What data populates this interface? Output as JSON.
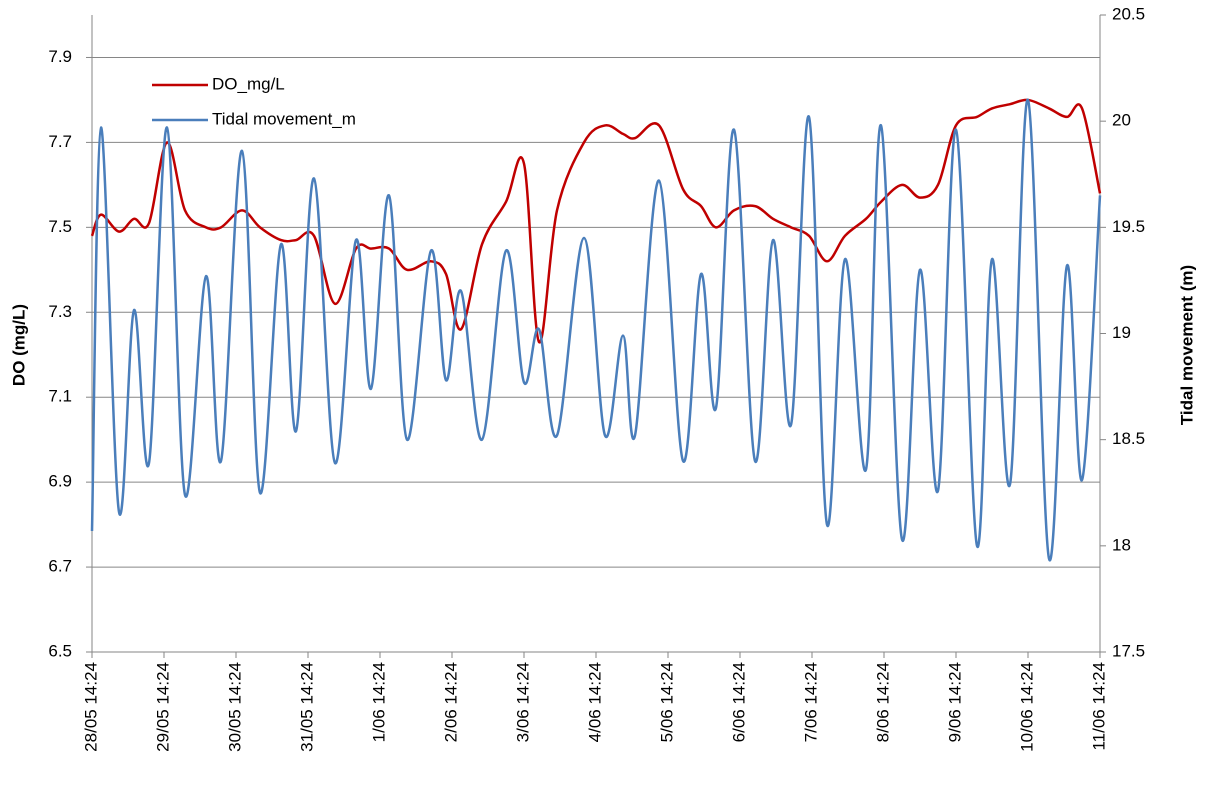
{
  "chart_data": {
    "type": "line",
    "ylabel": "DO (mg/L)",
    "y2label": "Tidal movement (m)",
    "x": [
      "28/05 14:24",
      "28/05 17:24",
      "28/05 23:24",
      "29/05 04:24",
      "29/05 09:24",
      "29/05 15:24",
      "29/05 21:24",
      "30/05 04:24",
      "30/05 09:24",
      "30/05 16:24",
      "30/05 22:24",
      "31/05 05:24",
      "31/05 10:24",
      "31/05 16:24",
      "31/05 23:24",
      "1/06 06:24",
      "1/06 11:24",
      "1/06 17:24",
      "1/06 23:24",
      "2/06 07:24",
      "2/06 12:24",
      "2/06 17:24",
      "3/06 00:24",
      "3/06 08:24",
      "3/06 14:24",
      "3/06 19:24",
      "4/06 01:24",
      "4/06 10:24",
      "4/06 17:24",
      "4/06 23:24",
      "5/06 03:24",
      "5/06 11:24",
      "5/06 19:24",
      "6/06 01:24",
      "6/06 06:24",
      "6/06 12:24",
      "6/06 19:24",
      "7/06 01:24",
      "7/06 07:24",
      "7/06 13:24",
      "7/06 19:24",
      "8/06 01:24",
      "8/06 08:24",
      "8/06 13:24",
      "8/06 20:24",
      "9/06 02:24",
      "9/06 08:24",
      "9/06 14:24",
      "9/06 21:24",
      "10/06 02:24",
      "10/06 08:24",
      "10/06 14:24",
      "10/06 21:24",
      "11/06 03:24",
      "11/06 08:24",
      "11/06 14:24"
    ],
    "series": [
      {
        "name": "DO_mg/L",
        "color": "#c00000",
        "values": [
          7.48,
          7.53,
          7.49,
          7.52,
          7.51,
          7.7,
          7.54,
          7.5,
          7.5,
          7.54,
          7.5,
          7.47,
          7.47,
          7.48,
          7.32,
          7.45,
          7.45,
          7.45,
          7.4,
          7.42,
          7.39,
          7.26,
          7.46,
          7.56,
          7.65,
          7.23,
          7.54,
          7.7,
          7.74,
          7.72,
          7.71,
          7.74,
          7.59,
          7.55,
          7.5,
          7.54,
          7.55,
          7.52,
          7.5,
          7.48,
          7.42,
          7.48,
          7.52,
          7.56,
          7.6,
          7.57,
          7.6,
          7.74,
          7.76,
          7.78,
          7.79,
          7.8,
          7.78,
          7.76,
          7.78,
          7.58
        ]
      },
      {
        "name": "Tidal movement_m",
        "color": "#4a7ebb",
        "axis": "y2",
        "values": [
          18.07,
          19.97,
          18.16,
          19.11,
          18.39,
          19.97,
          18.24,
          19.27,
          18.4,
          19.86,
          18.25,
          19.42,
          18.54,
          19.73,
          18.39,
          19.44,
          18.74,
          19.65,
          18.5,
          19.39,
          18.78,
          19.2,
          18.5,
          19.39,
          18.77,
          19.02,
          18.52,
          19.45,
          18.52,
          18.99,
          18.52,
          19.72,
          18.4,
          19.28,
          18.65,
          19.96,
          18.4,
          19.44,
          18.57,
          20.02,
          18.1,
          19.35,
          18.36,
          19.98,
          18.03,
          19.3,
          18.26,
          19.96,
          18.0,
          19.35,
          18.29,
          20.1,
          17.94,
          19.32,
          18.31,
          19.65
        ]
      }
    ],
    "xticks": [
      "28/05 14:24",
      "29/05 14:24",
      "30/05 14:24",
      "31/05 14:24",
      "1/06 14:24",
      "2/06 14:24",
      "3/06 14:24",
      "4/06 14:24",
      "5/06 14:24",
      "6/06 14:24",
      "7/06 14:24",
      "8/06 14:24",
      "9/06 14:24",
      "10/06 14:24",
      "11/06 14:24"
    ],
    "ylim": [
      6.5,
      8.0
    ],
    "yticks": [
      6.5,
      6.7,
      6.9,
      7.1,
      7.3,
      7.5,
      7.7,
      7.9
    ],
    "y2lim": [
      17.5,
      20.5
    ],
    "y2ticks": [
      17.5,
      18,
      18.5,
      19,
      19.5,
      20,
      20.5
    ],
    "grid": true,
    "legend": "upper left"
  }
}
